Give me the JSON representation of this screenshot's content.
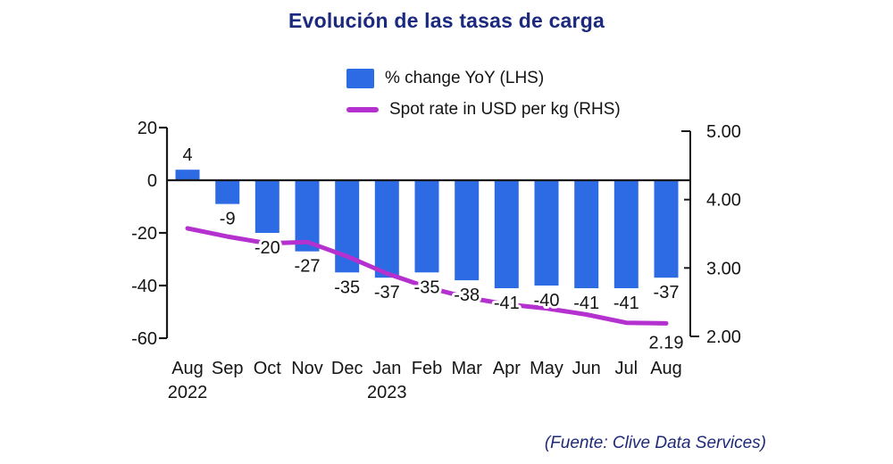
{
  "title": "Evolución de las tasas de carga",
  "legend": [
    {
      "label": "% change YoY (LHS)",
      "swatch": "bar"
    },
    {
      "label": "Spot rate in USD per kg (RHS)",
      "swatch": "line"
    }
  ],
  "source": "(Fuente: Clive Data Services)",
  "colors": {
    "title": "#1b2a7e",
    "source": "#1f2a78",
    "bar": "#2d6be4",
    "line": "#b431cf",
    "axis": "#1a1a1a",
    "label": "#141414"
  },
  "chart_data": {
    "type": "bar",
    "categories": [
      "Aug",
      "Sep",
      "Oct",
      "Nov",
      "Dec",
      "Jan",
      "Feb",
      "Mar",
      "Apr",
      "May",
      "Jun",
      "Jul",
      "Aug"
    ],
    "year_labels": [
      {
        "text": "2022",
        "index": 0
      },
      {
        "text": "2023",
        "index": 5
      }
    ],
    "series": [
      {
        "name": "% change YoY (LHS)",
        "type": "bar",
        "axis": "left",
        "values": [
          4,
          -9,
          -20,
          -27,
          -35,
          -37,
          -35,
          -38,
          -41,
          -40,
          -41,
          -41,
          -37
        ]
      },
      {
        "name": "Spot rate in USD per kg (RHS)",
        "type": "line",
        "axis": "right",
        "values": [
          3.58,
          3.46,
          3.36,
          3.38,
          3.17,
          2.92,
          2.72,
          2.57,
          2.47,
          2.41,
          2.32,
          2.2,
          2.19
        ],
        "end_label": "2.19"
      }
    ],
    "left_axis": {
      "ticks": [
        20,
        0,
        -20,
        -40,
        -60
      ],
      "range": [
        -60,
        20
      ]
    },
    "right_axis": {
      "ticks": [
        "5.00",
        "4.00",
        "3.00",
        "2.00"
      ],
      "range": [
        2,
        5
      ]
    },
    "grid": false,
    "legend_position": "top-center"
  }
}
